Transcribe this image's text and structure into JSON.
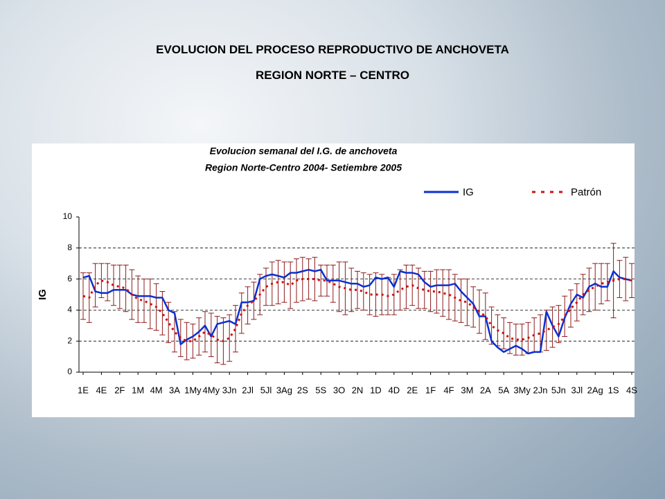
{
  "title": "EVOLUCION DEL PROCESO REPRODUCTIVO DE ANCHOVETA",
  "subtitle": "REGION NORTE – CENTRO",
  "chart_data": {
    "type": "line",
    "title": "Evolucion semanal del I.G. de anchoveta",
    "subtitle": "Region Norte-Centro  2004- Setiembre 2005",
    "y_label": "IG",
    "ylim": [
      0,
      10
    ],
    "yticks": [
      0,
      2,
      4,
      6,
      8,
      10
    ],
    "grid": true,
    "legend": "top-right",
    "categories": [
      "1E",
      null,
      null,
      "4E",
      null,
      null,
      "2F",
      null,
      null,
      "1M",
      null,
      null,
      "4M",
      null,
      null,
      "3A",
      null,
      null,
      "1My",
      null,
      null,
      "4My",
      null,
      null,
      "3Jn",
      null,
      null,
      "2Jl",
      null,
      null,
      "5Jl",
      null,
      null,
      "3Ag",
      null,
      null,
      "2S",
      null,
      null,
      "5S",
      null,
      null,
      "3O",
      null,
      null,
      "2N",
      null,
      null,
      "1D",
      null,
      null,
      "4D",
      null,
      null,
      "2E",
      null,
      null,
      "1F",
      null,
      null,
      "4F",
      null,
      null,
      "3M",
      null,
      null,
      "2A",
      null,
      null,
      "5A",
      null,
      null,
      "3My",
      null,
      null,
      "2Jn",
      null,
      null,
      "5Jn",
      null,
      null,
      "3Jl",
      null,
      null,
      "2Ag",
      null,
      null,
      "1S",
      null,
      null,
      "4S"
    ],
    "series": [
      {
        "name": "IG",
        "color": "#0a2fd0",
        "dashed": false,
        "values": [
          6.1,
          6.2,
          5.2,
          5.1,
          5.1,
          5.3,
          5.3,
          5.3,
          5.0,
          4.9,
          4.9,
          4.9,
          4.8,
          4.8,
          4.0,
          3.8,
          1.8,
          2.1,
          2.3,
          2.6,
          3.0,
          2.3,
          3.1,
          3.2,
          3.3,
          3.1,
          4.5,
          4.5,
          4.6,
          6.0,
          6.2,
          6.3,
          6.2,
          6.1,
          6.4,
          6.4,
          6.5,
          6.6,
          6.5,
          6.6,
          5.9,
          5.9,
          5.9,
          5.8,
          5.7,
          5.7,
          5.5,
          5.6,
          6.1,
          6.0,
          6.1,
          5.5,
          6.5,
          6.4,
          6.4,
          6.3,
          5.8,
          5.5,
          5.6,
          5.6,
          5.6,
          5.7,
          5.2,
          4.8,
          4.4,
          3.6,
          3.6,
          2.0,
          1.6,
          1.3,
          1.5,
          1.7,
          1.5,
          1.2,
          1.3,
          1.3,
          3.9,
          3.0,
          2.3,
          3.5,
          4.4,
          5.0,
          4.8,
          5.5,
          5.7,
          5.5,
          5.5,
          6.5,
          6.1,
          6.0,
          5.9
        ]
      },
      {
        "name": "Patrón",
        "color": "#d01010",
        "dashed": true,
        "error_color": "#8b1a1a",
        "values": [
          4.9,
          4.8,
          5.6,
          5.9,
          5.8,
          5.6,
          5.5,
          5.4,
          5.0,
          4.7,
          4.6,
          4.4,
          4.2,
          3.8,
          3.2,
          2.6,
          2.2,
          2.0,
          2.0,
          2.3,
          2.6,
          2.4,
          2.1,
          2.0,
          2.2,
          2.8,
          3.8,
          4.3,
          4.6,
          5.0,
          5.5,
          5.7,
          5.8,
          5.8,
          5.6,
          5.9,
          6.0,
          6.0,
          6.0,
          5.9,
          5.9,
          5.7,
          5.5,
          5.4,
          5.3,
          5.3,
          5.2,
          5.0,
          5.0,
          5.0,
          4.9,
          5.0,
          5.3,
          5.5,
          5.6,
          5.4,
          5.3,
          5.2,
          5.2,
          5.1,
          5.0,
          4.8,
          4.6,
          4.5,
          4.2,
          3.9,
          3.6,
          3.0,
          2.7,
          2.5,
          2.2,
          2.1,
          2.1,
          2.2,
          2.4,
          2.5,
          2.7,
          2.9,
          3.1,
          3.6,
          4.1,
          4.5,
          5.0,
          5.3,
          5.5,
          5.7,
          5.8,
          5.9,
          6.0,
          6.0,
          5.9
        ],
        "errors": [
          1.5,
          1.6,
          1.4,
          1.1,
          1.2,
          1.3,
          1.4,
          1.5,
          1.6,
          1.5,
          1.4,
          1.6,
          1.5,
          1.4,
          1.3,
          1.3,
          1.2,
          1.2,
          1.1,
          1.2,
          1.3,
          1.4,
          1.5,
          1.5,
          1.5,
          1.5,
          1.3,
          1.2,
          1.2,
          1.3,
          1.2,
          1.4,
          1.4,
          1.3,
          1.5,
          1.4,
          1.4,
          1.3,
          1.4,
          1.0,
          1.0,
          1.2,
          1.6,
          1.7,
          1.4,
          1.2,
          1.2,
          1.3,
          1.4,
          1.3,
          1.2,
          1.3,
          1.3,
          1.4,
          1.3,
          1.3,
          1.2,
          1.3,
          1.4,
          1.5,
          1.6,
          1.5,
          1.4,
          1.5,
          1.3,
          1.4,
          1.5,
          1.2,
          1.0,
          1.0,
          1.0,
          1.0,
          1.0,
          1.0,
          1.1,
          1.2,
          1.3,
          1.3,
          1.2,
          1.3,
          1.2,
          1.2,
          1.3,
          1.4,
          1.5,
          1.3,
          1.2,
          2.4,
          1.2,
          1.4,
          1.1
        ]
      }
    ]
  }
}
